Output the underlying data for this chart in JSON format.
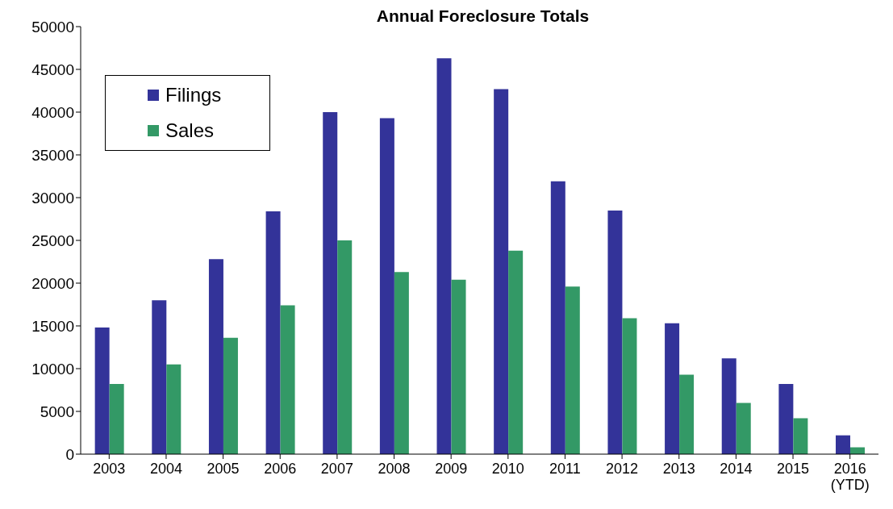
{
  "chart_data": {
    "type": "bar",
    "title": "Annual Foreclosure Totals",
    "categories": [
      "2003",
      "2004",
      "2005",
      "2006",
      "2007",
      "2008",
      "2009",
      "2010",
      "2011",
      "2012",
      "2013",
      "2014",
      "2015",
      "2016\n(YTD)"
    ],
    "series": [
      {
        "name": "Filings",
        "color": "#333399",
        "values": [
          14800,
          18000,
          22800,
          28400,
          40000,
          39300,
          46300,
          42700,
          31900,
          28500,
          15300,
          11200,
          8200,
          2200
        ]
      },
      {
        "name": "Sales",
        "color": "#339966",
        "values": [
          8200,
          10500,
          13600,
          17400,
          25000,
          21300,
          20400,
          23800,
          19600,
          15900,
          9300,
          6000,
          4200,
          800
        ]
      }
    ],
    "ylim": [
      0,
      50000
    ],
    "yticks": [
      0,
      5000,
      10000,
      15000,
      20000,
      25000,
      30000,
      35000,
      40000,
      45000,
      50000
    ],
    "grid": false,
    "legend": "top left"
  }
}
